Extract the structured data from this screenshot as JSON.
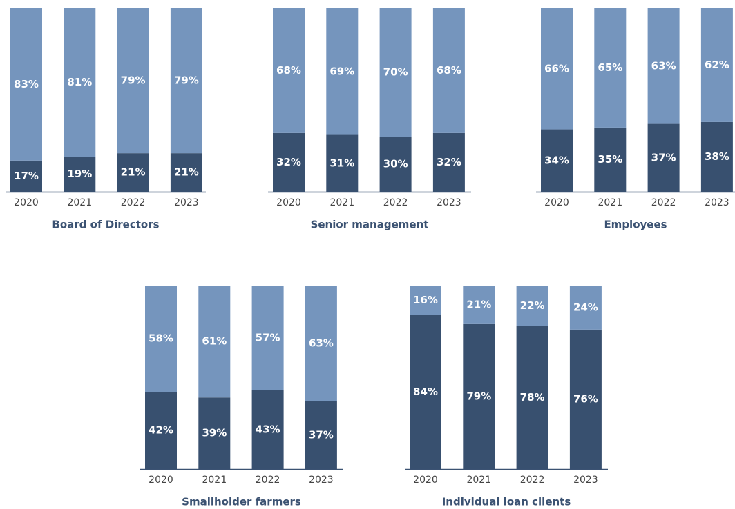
{
  "chart_data": [
    {
      "type": "bar",
      "stacked": true,
      "title": "Board of Directors",
      "categories": [
        "2020",
        "2021",
        "2022",
        "2023"
      ],
      "series": [
        {
          "color": "#38506f",
          "values": [
            17,
            19,
            21,
            21
          ],
          "value_labels": [
            "17%",
            "19%",
            "21%",
            "21%"
          ]
        },
        {
          "color": "#7595bd",
          "values": [
            83,
            81,
            79,
            79
          ],
          "value_labels": [
            "83%",
            "81%",
            "79%",
            "79%"
          ]
        }
      ]
    },
    {
      "type": "bar",
      "stacked": true,
      "title": "Senior management",
      "categories": [
        "2020",
        "2021",
        "2022",
        "2023"
      ],
      "series": [
        {
          "color": "#38506f",
          "values": [
            32,
            31,
            30,
            32
          ],
          "value_labels": [
            "32%",
            "31%",
            "30%",
            "32%"
          ]
        },
        {
          "color": "#7595bd",
          "values": [
            68,
            69,
            70,
            68
          ],
          "value_labels": [
            "68%",
            "69%",
            "70%",
            "68%"
          ]
        }
      ]
    },
    {
      "type": "bar",
      "stacked": true,
      "title": "Employees",
      "categories": [
        "2020",
        "2021",
        "2022",
        "2023"
      ],
      "series": [
        {
          "color": "#38506f",
          "values": [
            34,
            35,
            37,
            38
          ],
          "value_labels": [
            "34%",
            "35%",
            "37%",
            "38%"
          ]
        },
        {
          "color": "#7595bd",
          "values": [
            66,
            65,
            63,
            62
          ],
          "value_labels": [
            "66%",
            "65%",
            "63%",
            "62%"
          ]
        }
      ]
    },
    {
      "type": "bar",
      "stacked": true,
      "title": "Smallholder farmers",
      "categories": [
        "2020",
        "2021",
        "2022",
        "2023"
      ],
      "series": [
        {
          "color": "#38506f",
          "values": [
            42,
            39,
            43,
            37
          ],
          "value_labels": [
            "42%",
            "39%",
            "43%",
            "37%"
          ]
        },
        {
          "color": "#7595bd",
          "values": [
            58,
            61,
            57,
            63
          ],
          "value_labels": [
            "58%",
            "61%",
            "57%",
            "63%"
          ]
        }
      ]
    },
    {
      "type": "bar",
      "stacked": true,
      "title": "Individual loan clients",
      "categories": [
        "2020",
        "2021",
        "2022",
        "2023"
      ],
      "series": [
        {
          "color": "#38506f",
          "values": [
            84,
            79,
            78,
            76
          ],
          "value_labels": [
            "84%",
            "79%",
            "78%",
            "76%"
          ]
        },
        {
          "color": "#7595bd",
          "values": [
            16,
            21,
            22,
            24
          ],
          "value_labels": [
            "16%",
            "21%",
            "22%",
            "24%"
          ]
        }
      ]
    }
  ]
}
